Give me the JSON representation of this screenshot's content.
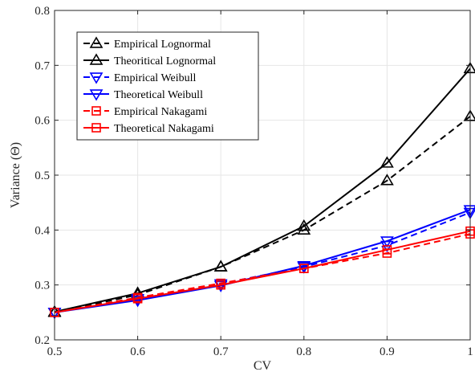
{
  "chart_data": {
    "type": "line",
    "title": "",
    "xlabel": "CV",
    "ylabel": "Variance (Θ)",
    "xlim": [
      0.5,
      1.0
    ],
    "ylim": [
      0.2,
      0.8
    ],
    "x_ticks": [
      0.5,
      0.6,
      0.7,
      0.8,
      0.9,
      1.0
    ],
    "y_ticks": [
      0.2,
      0.3,
      0.4,
      0.5,
      0.6,
      0.7,
      0.8
    ],
    "x_tick_labels": [
      "0.5",
      "0.6",
      "0.7",
      "0.8",
      "0.9",
      "1"
    ],
    "y_tick_labels": [
      "0.2",
      "0.3",
      "0.4",
      "0.5",
      "0.6",
      "0.7",
      "0.8"
    ],
    "grid": true,
    "legend_position": "top-left",
    "x": [
      0.5,
      0.6,
      0.7,
      0.8,
      0.9,
      1.0
    ],
    "series": [
      {
        "name": "Empirical Lognormal",
        "color": "#000000",
        "dash": "dashed",
        "marker": "triangle-up",
        "values": [
          0.25,
          0.282,
          0.333,
          0.4,
          0.49,
          0.607
        ]
      },
      {
        "name": "Theoritical Lognormal",
        "color": "#000000",
        "dash": "solid",
        "marker": "triangle-up",
        "values": [
          0.251,
          0.285,
          0.333,
          0.407,
          0.522,
          0.694
        ]
      },
      {
        "name": "Empirical Weibull",
        "color": "#0000ff",
        "dash": "dashed",
        "marker": "triangle-down",
        "values": [
          0.25,
          0.275,
          0.302,
          0.333,
          0.372,
          0.432
        ]
      },
      {
        "name": "Theoretical Weibull",
        "color": "#0000ff",
        "dash": "solid",
        "marker": "triangle-down",
        "values": [
          0.25,
          0.272,
          0.299,
          0.335,
          0.38,
          0.437
        ]
      },
      {
        "name": "Empirical Nakagami",
        "color": "#ff0000",
        "dash": "dashed",
        "marker": "square",
        "values": [
          0.25,
          0.277,
          0.303,
          0.33,
          0.358,
          0.393
        ]
      },
      {
        "name": "Theoretical Nakagami",
        "color": "#ff0000",
        "dash": "solid",
        "marker": "square",
        "values": [
          0.25,
          0.275,
          0.3,
          0.33,
          0.364,
          0.398
        ]
      }
    ]
  }
}
